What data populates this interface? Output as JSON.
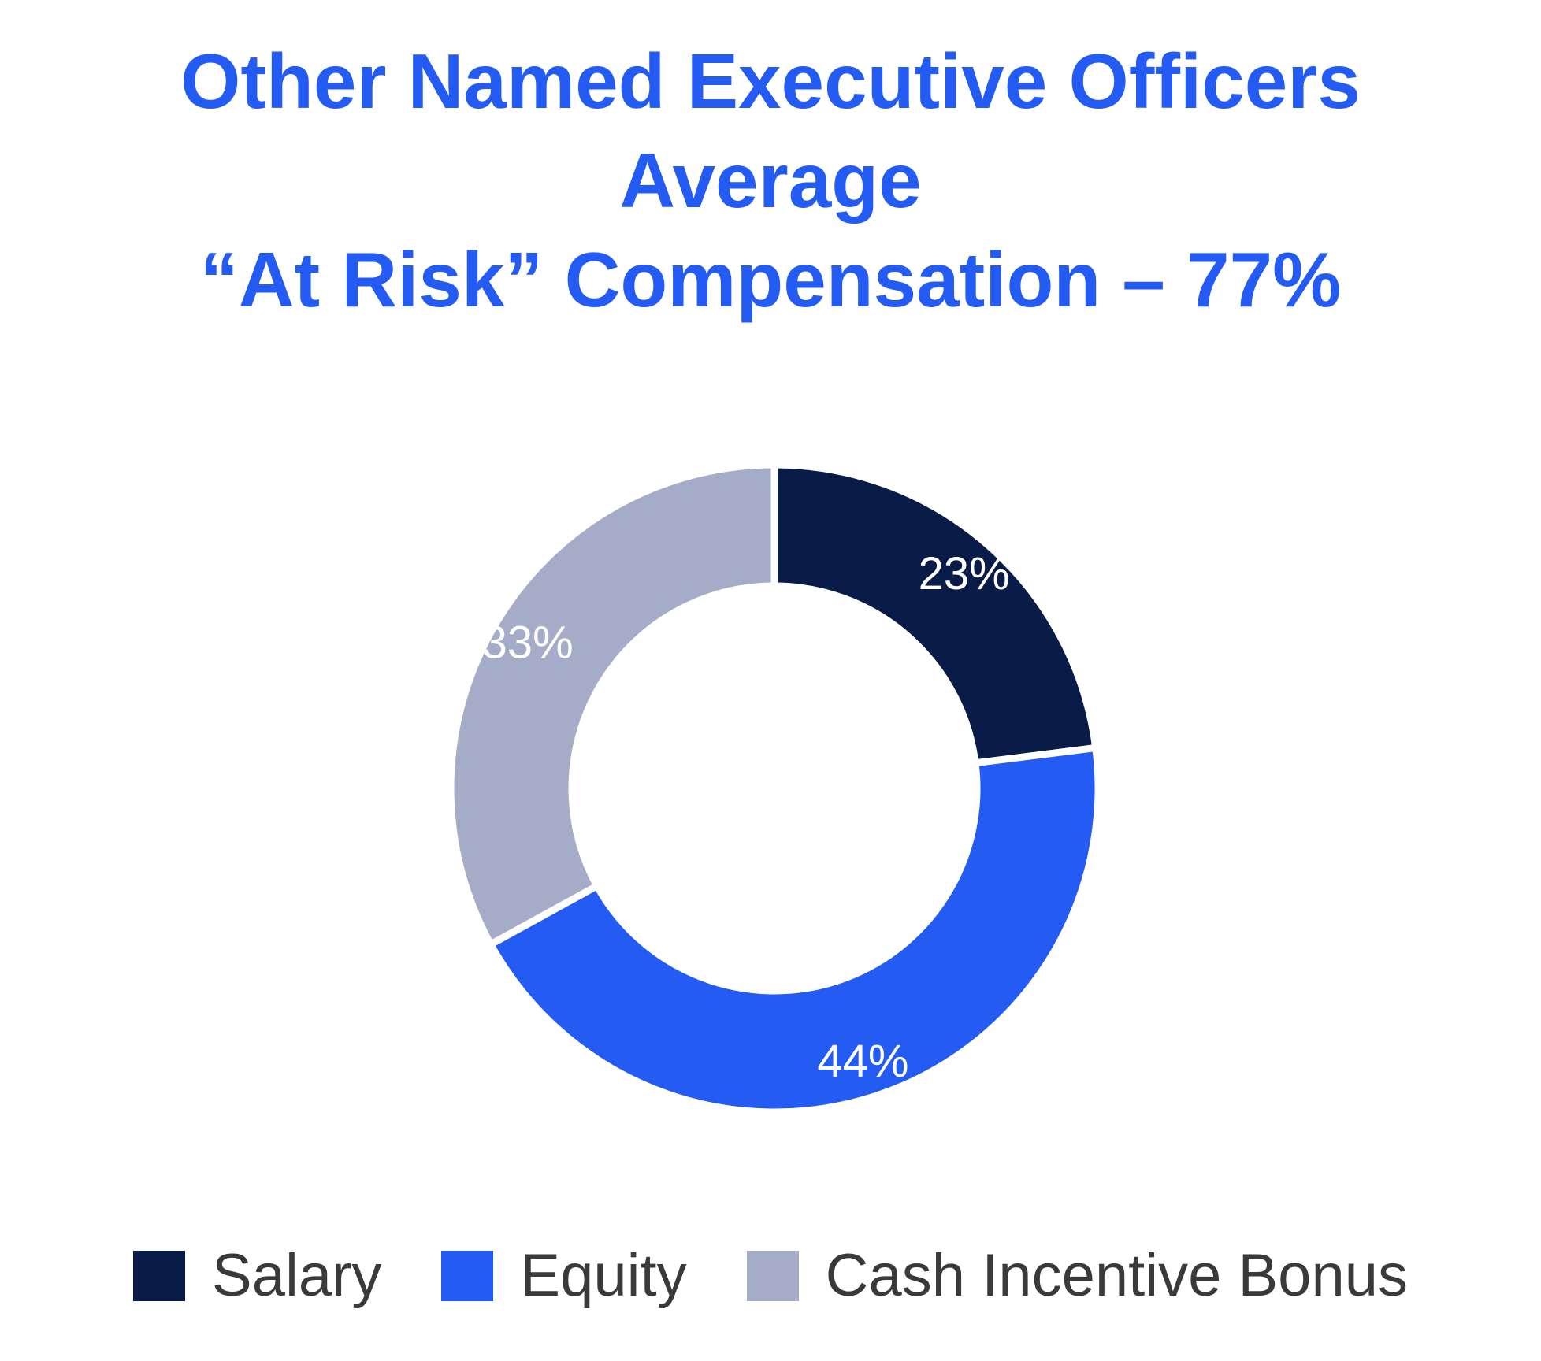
{
  "chart_data": {
    "type": "pie",
    "variant": "donut",
    "title_lines": [
      "Other Named Executive Officers",
      "Average",
      "“At Risk” Compensation – 77%"
    ],
    "categories": [
      "Salary",
      "Equity",
      "Cash Incentive Bonus"
    ],
    "values": [
      23,
      44,
      33
    ],
    "labels": [
      "23%",
      "44%",
      "33%"
    ],
    "colors": [
      "#081C47",
      "#245BF2",
      "#A5ACC8"
    ],
    "title_color": "#245BF2",
    "legend_position": "bottom",
    "start": "top",
    "direction": "clockwise"
  }
}
